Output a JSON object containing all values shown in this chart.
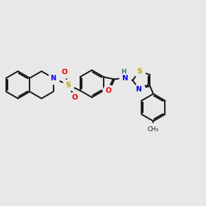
{
  "bg_color": "#e8e8e8",
  "bond_color": "#1a1a1a",
  "N_color": "#0000ee",
  "O_color": "#ee0000",
  "S_color": "#bbaa00",
  "H_color": "#337777",
  "lw": 1.5,
  "figsize": [
    3.0,
    3.0
  ],
  "dpi": 100,
  "xlim": [
    -2.5,
    6.5
  ],
  "ylim": [
    -2.8,
    3.2
  ]
}
